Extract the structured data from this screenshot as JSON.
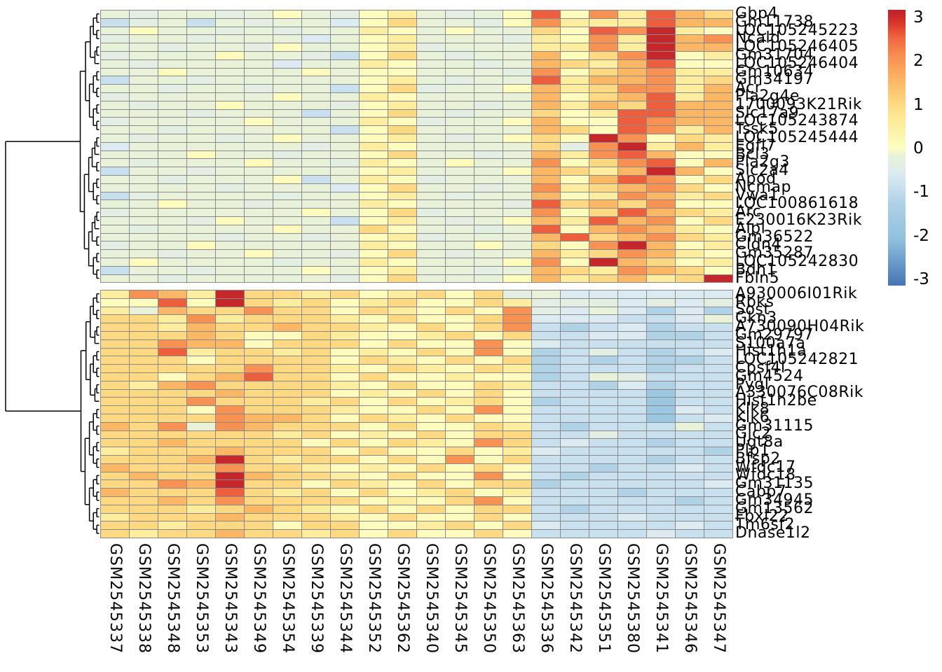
{
  "chart_data": {
    "type": "heatmap",
    "description": "Hierarchically clustered gene expression heatmap (z-scores) with row dendrogram, two row clusters",
    "value_range": [
      -3,
      3
    ],
    "columns": [
      "GSM2545337",
      "GSM2545338",
      "GSM2545348",
      "GSM2545353",
      "GSM2545343",
      "GSM2545349",
      "GSM2545354",
      "GSM2545339",
      "GSM2545344",
      "GSM2545352",
      "GSM2545362",
      "GSM2545340",
      "GSM2545345",
      "GSM2545350",
      "GSM2545363",
      "GSM2545336",
      "GSM2545342",
      "GSM2545351",
      "GSM2545380",
      "GSM2545341",
      "GSM2545346",
      "GSM2545347"
    ],
    "row_clusters": [
      33,
      30
    ],
    "levels_map": {
      "B": -1.7,
      "b": -1.2,
      "c": -0.85,
      "p": -0.55,
      "g": -0.35,
      "e": -0.2,
      "y": 0.05,
      "Y": 0.5,
      "m": 0.95,
      "o": 1.45,
      "O": 1.95,
      "R": 2.45,
      "r": 2.9
    },
    "colormap_stops": [
      [
        -3,
        "#4575B4"
      ],
      [
        -2,
        "#8FC0DC"
      ],
      [
        -1.2,
        "#AFD2E7"
      ],
      [
        -0.85,
        "#C9E1EE"
      ],
      [
        -0.55,
        "#DCEBF1"
      ],
      [
        -0.35,
        "#E2EFE2"
      ],
      [
        -0.2,
        "#E7F2D9"
      ],
      [
        0,
        "#FEFEC0"
      ],
      [
        0.4,
        "#FDF0A4"
      ],
      [
        0.8,
        "#FEE38C"
      ],
      [
        1.2,
        "#FDC970"
      ],
      [
        1.6,
        "#FCAC5F"
      ],
      [
        2,
        "#F78E51"
      ],
      [
        2.4,
        "#F0653F"
      ],
      [
        2.75,
        "#D63127"
      ],
      [
        3,
        "#BB202C"
      ]
    ],
    "rows": [
      {
        "label": "Gbp4",
        "levels": "egeegeyegyYegeyRyOYRom"
      },
      {
        "label": "Gm11738",
        "levels": "cgecegeepymeegyOYYYRoo"
      },
      {
        "label": "LOC105245223",
        "levels": "eyeegegeeYyeyeemyROrYy"
      },
      {
        "label": "Ncald",
        "levels": "geegeeepeyYeeegYyOYroO"
      },
      {
        "label": "LOC105246405",
        "levels": "eegeegyeeyYgeeeYYOYroo"
      },
      {
        "label": "Gm31704",
        "levels": "geeeyeegcymegeeoymOryY"
      },
      {
        "label": "LOC105246404",
        "levels": "egeeeepeeYyeegeomYoRyy"
      },
      {
        "label": "Gm10634",
        "levels": "eeyeeeeyeyyeeegOymoOYY"
      },
      {
        "label": "Gm34197",
        "levels": "ceegeeeeeyYegeeRYooOYm"
      },
      {
        "label": "Acr",
        "levels": "eegeegeecymgeeyoYmOOYo"
      },
      {
        "label": "Pla2g4e",
        "levels": "geeeeeyeeYyeeeeoymoRYo"
      },
      {
        "label": "1700093K21Rik",
        "levels": "egeeyeeegyYeegeoYomRoo"
      },
      {
        "label": "Slc17a9",
        "levels": "eeegeeeceymegeemyYRRoo"
      },
      {
        "label": "LOC105243874",
        "levels": "geeeeyeeeYygeeyoyyROoo"
      },
      {
        "label": "Tssk5",
        "levels": "eegeeeeecymeeeeomyROYo"
      },
      {
        "label": "LOC105245444",
        "levels": "egeegeyeeyYegeymyrOymY"
      },
      {
        "label": "Egfl7",
        "levels": "peeeeeegeYyeeeemgOrYoY"
      },
      {
        "label": "Bcl3",
        "levels": "eeeyeegeeymeegeoYORoyy"
      },
      {
        "label": "Pla2g3",
        "levels": "egeeeyeegYyeyeeOymORyo"
      },
      {
        "label": "Slc2a4",
        "levels": "ceegeeeeeyYeeeyomYoroy"
      },
      {
        "label": "Apod",
        "levels": "eegeeeyceYygeeeoyoROym"
      },
      {
        "label": "Ncmap",
        "levels": "eeeegeeepymeegeOYmoOmy"
      },
      {
        "label": "Vwa1",
        "levels": "cgeeeegeeyYegeeoyYOoYm"
      },
      {
        "label": "LOC100861618",
        "levels": "eeyeegeeeYyeeegRmomOyy"
      },
      {
        "label": "Arc",
        "levels": "geeeeeeyeymgeeeOymRomY"
      },
      {
        "label": "E230016K23Rik",
        "levels": "eeegyeeecyYegeyoYRoOym"
      },
      {
        "label": "Alpl",
        "levels": "egeeeeyeemyeegeRyoOoYy"
      },
      {
        "label": "Gm36522",
        "levels": "eeeegeegeyYgeeeoRmoOmY"
      },
      {
        "label": "Cldn4",
        "levels": "geeyeeeeeYyeeyemyOroyY"
      },
      {
        "label": "Gm35287",
        "levels": "eegeeyeegymegeeoYmOoYy"
      },
      {
        "label": "LOC105242830",
        "levels": "eyeeeegeeYyeeeyOyromyY"
      },
      {
        "label": "Bdh1",
        "levels": "ceegeeeyeyYeegeomYOomy"
      },
      {
        "label": "Fbln5",
        "levels": "eegeeeeegymeeeyoYmoYmr"
      },
      {
        "label": "A930006I01Rik",
        "levels": "YOoYrmmYmyYmymgepppppp"
      },
      {
        "label": "Rbks",
        "levels": "yyRyrmYmyYmyymYgggpgpg"
      },
      {
        "label": "Sost",
        "levels": "YeommOmmymYymyOgpepbpb"
      },
      {
        "label": "Gkn3",
        "levels": "mmYOYmmmYymyymOpppccpe"
      },
      {
        "label": "A730090H04Rik",
        "levels": "mmYommommYymymOcbcpbcc"
      },
      {
        "label": "Gm29797",
        "levels": "mmmomyymYyyYmymccppbbc"
      },
      {
        "label": "S100a7a",
        "levels": "mmOooymmmymyyOypcccccc"
      },
      {
        "label": "Hist1h1a",
        "levels": "mmRYmmYmyYymyOybcgcbcp"
      },
      {
        "label": "LOC105242821",
        "levels": "mmmymmmmymYymymbcbcbbc"
      },
      {
        "label": "Cpsf4l",
        "levels": "mmmmmOmmYymYymYbcccbcc"
      },
      {
        "label": "Gm4524",
        "levels": "mmymoRmmymyyYyybcegccc"
      },
      {
        "label": "Pygl",
        "levels": "mYoOmmmmYymyymYccbpbcc"
      },
      {
        "label": "A330076C08Rik",
        "levels": "mmmmommmyYymymyccccBcc"
      },
      {
        "label": "Hist1h2be",
        "levels": "mmmOmmmYmymyYmybcccBcc"
      },
      {
        "label": "Klk8",
        "levels": "mmmyOmmmYyymyOyccccBpc"
      },
      {
        "label": "Klk6",
        "levels": "mmmmOoomymYymyyccccBcp"
      },
      {
        "label": "Gm31115",
        "levels": "omOeOommmymyymYcbcccec"
      },
      {
        "label": "Gjc2",
        "levels": "mmmmmmYmyYymymmccgcccc"
      },
      {
        "label": "Ugt8a",
        "levels": "mmommmmymymYyOmcpccbcc"
      },
      {
        "label": "Plp1",
        "levels": "YmmmommmymyymyYpcccccb"
      },
      {
        "label": "Bfsp2",
        "levels": "mmmormYmmymyOymccccbcc"
      },
      {
        "label": "Wfdc17",
        "levels": "ommmOmmYyYymymyccbccpc"
      },
      {
        "label": "Wfdc18",
        "levels": "mommrommYymyyOycbccccc"
      },
      {
        "label": "Gm31135",
        "levels": "mmOormmymYymymmbcccccp"
      },
      {
        "label": "Cabp7",
        "levels": "ommmRmYmymyYmyYcccbccc"
      },
      {
        "label": "Gm34945",
        "levels": "mmomOmmmmyYymOycccccbc"
      },
      {
        "label": "Gm13562",
        "levels": "mmmYmomYymymymmcbccccc"
      },
      {
        "label": "Fbxl22",
        "levels": "YmmmommmYymyymycccpccc"
      },
      {
        "label": "Tm6sf2",
        "levels": "mmYmmmymmyyYmympccccpc"
      },
      {
        "label": "Dnase1l2",
        "levels": "mYmmommYmymyymyccccpcc"
      }
    ]
  },
  "legend": {
    "ticks": [
      "3",
      "2",
      "1",
      "0",
      "-1",
      "-2",
      "-3"
    ],
    "tick_values": [
      3,
      2,
      1,
      0,
      -1,
      -2,
      -3
    ]
  }
}
